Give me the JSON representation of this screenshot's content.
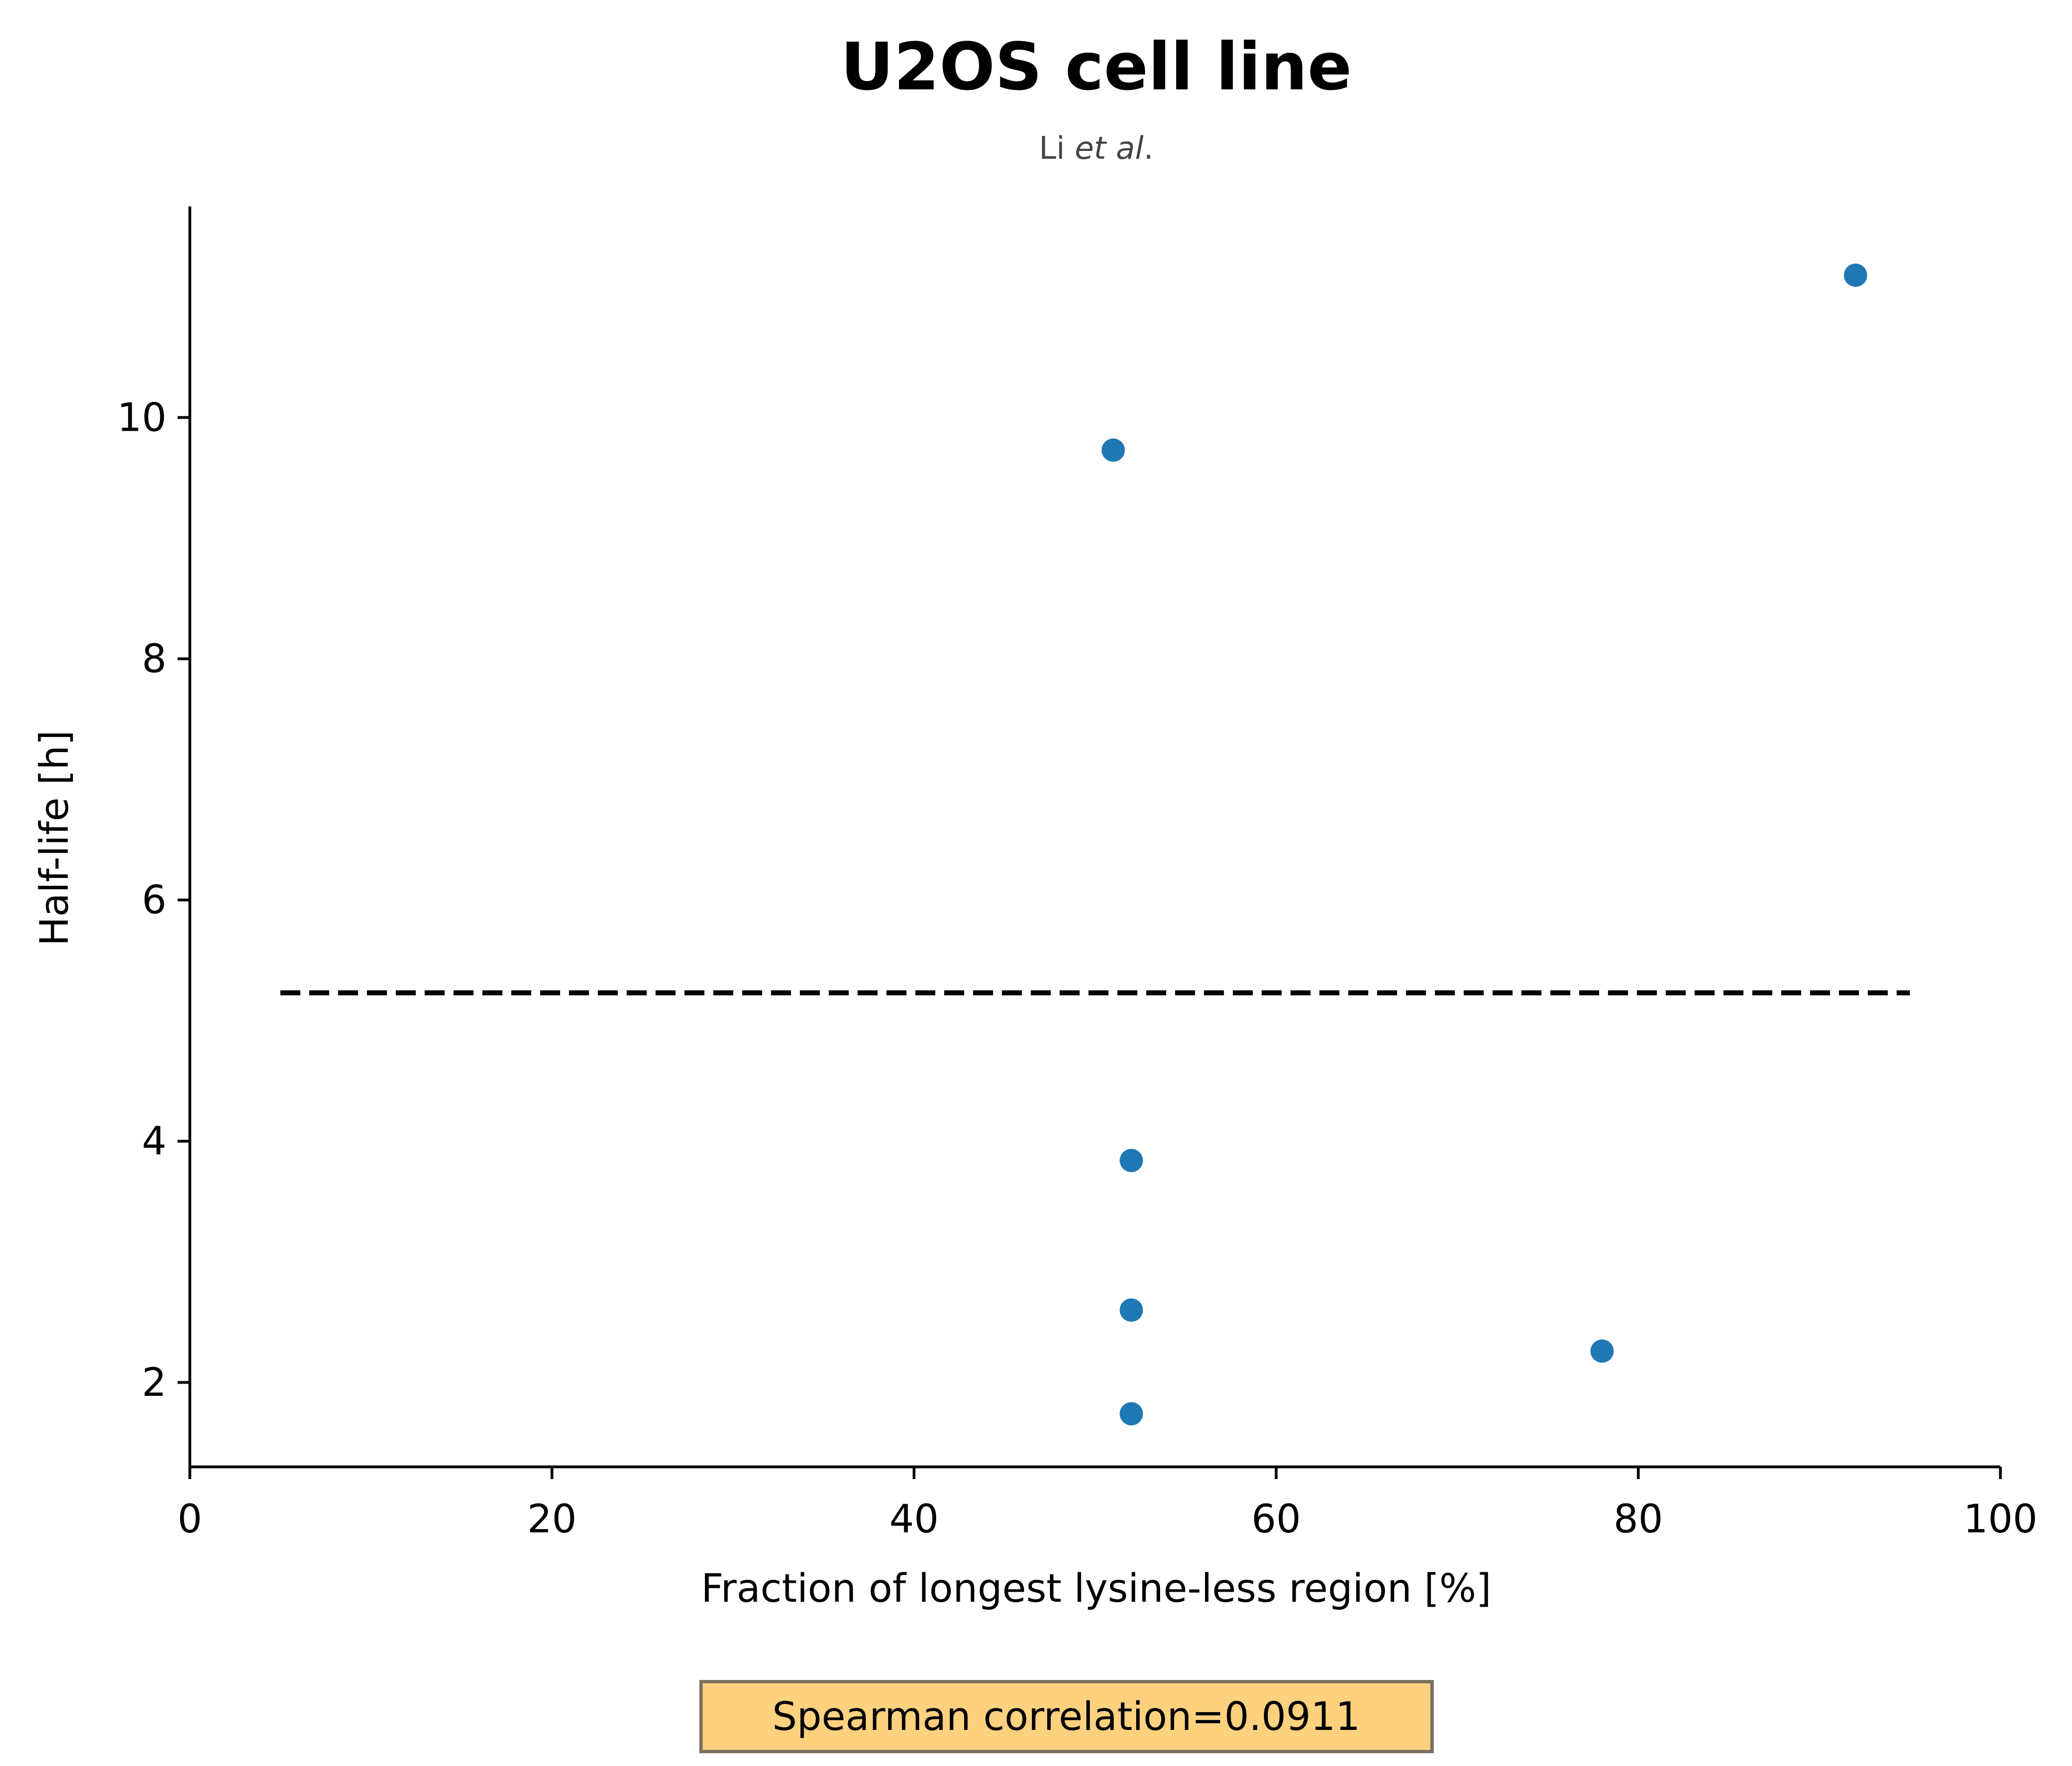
{
  "chart_data": {
    "type": "scatter",
    "title": "U2OS cell line",
    "subtitle": {
      "prefix": "Li ",
      "emphasis": "et al",
      "suffix": "."
    },
    "xlabel": "Fraction of longest lysine-less region [%]",
    "ylabel": "Half-life [h]",
    "xlim": [
      0,
      100
    ],
    "ylim": [
      1.3,
      11.75
    ],
    "xticks": [
      0,
      20,
      40,
      60,
      80,
      100
    ],
    "xtick_labels": [
      "0",
      "20",
      "40",
      "60",
      "80",
      "100"
    ],
    "yticks": [
      2,
      4,
      6,
      8,
      10
    ],
    "ytick_labels": [
      "2",
      "4",
      "6",
      "8",
      "10"
    ],
    "series": [
      {
        "color": "#1f77b4",
        "points": [
          {
            "x": 51,
            "y": 9.73
          },
          {
            "x": 92,
            "y": 11.18
          },
          {
            "x": 52,
            "y": 3.84
          },
          {
            "x": 52,
            "y": 2.6
          },
          {
            "x": 52,
            "y": 1.74
          },
          {
            "x": 78,
            "y": 2.26
          }
        ]
      }
    ],
    "reference_line": {
      "style": "dashed",
      "color": "#000000",
      "y": 5.23,
      "x_start": 5,
      "x_end": 95
    },
    "annotation": {
      "text": "Spearman correlation=0.0911",
      "background": "#fed17f",
      "border": "#7a7060"
    },
    "grid": false,
    "legend": "none"
  }
}
